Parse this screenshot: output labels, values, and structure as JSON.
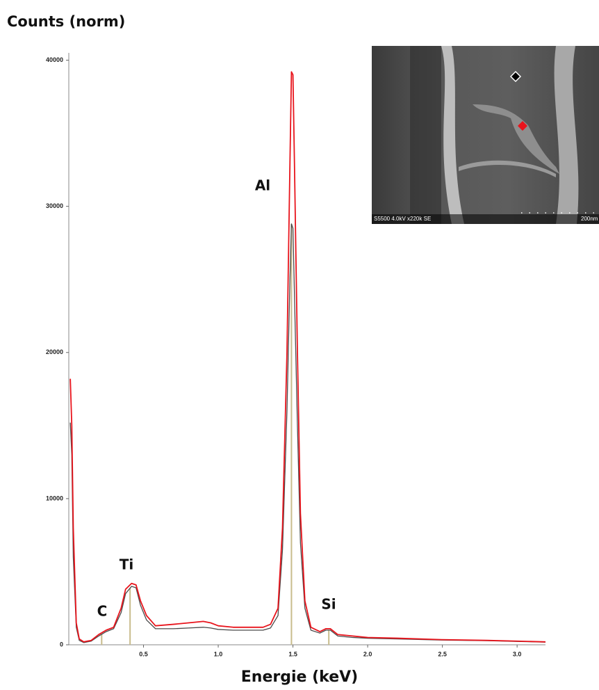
{
  "chart_data": {
    "type": "line",
    "title": "Counts (norm)",
    "x_label": "Energie (keV)",
    "x": [
      0.01,
      0.02,
      0.03,
      0.05,
      0.07,
      0.1,
      0.15,
      0.2,
      0.25,
      0.3,
      0.35,
      0.38,
      0.42,
      0.45,
      0.48,
      0.52,
      0.58,
      0.7,
      0.8,
      0.9,
      0.95,
      1.0,
      1.1,
      1.2,
      1.3,
      1.35,
      1.4,
      1.43,
      1.46,
      1.48,
      1.49,
      1.5,
      1.51,
      1.53,
      1.55,
      1.58,
      1.62,
      1.68,
      1.72,
      1.75,
      1.8,
      1.9,
      2.0,
      2.2,
      2.5,
      2.8,
      3.0,
      3.19
    ],
    "series": [
      {
        "color": "#4a4a4a",
        "values": [
          15200,
          13000,
          6000,
          1200,
          300,
          150,
          250,
          600,
          900,
          1100,
          2200,
          3500,
          4000,
          3900,
          2700,
          1700,
          1100,
          1100,
          1150,
          1200,
          1150,
          1050,
          1000,
          1000,
          1000,
          1150,
          2000,
          6500,
          16000,
          25000,
          28800,
          28500,
          24000,
          15000,
          7000,
          2500,
          1000,
          800,
          1000,
          1000,
          600,
          500,
          450,
          400,
          320,
          280,
          230,
          180
        ]
      },
      {
        "color": "#e8141c",
        "values": [
          18200,
          15000,
          8000,
          1500,
          400,
          200,
          300,
          700,
          1000,
          1200,
          2500,
          3800,
          4200,
          4100,
          3000,
          2000,
          1300,
          1400,
          1500,
          1600,
          1500,
          1300,
          1200,
          1200,
          1200,
          1400,
          2500,
          8000,
          20000,
          33000,
          39200,
          39000,
          33000,
          20000,
          9000,
          3000,
          1200,
          900,
          1100,
          1100,
          700,
          600,
          500,
          450,
          350,
          300,
          250,
          200
        ]
      }
    ],
    "xlim": [
      0,
      3.19
    ],
    "ylim": [
      0,
      40500
    ],
    "xticks": [
      0.5,
      {
        "value": 1,
        "label": "1.0"
      },
      1.5,
      {
        "value": 2,
        "label": "2.0"
      },
      2.5,
      {
        "value": 3,
        "label": "3.0"
      }
    ],
    "yticks": [
      0,
      10000,
      20000,
      30000,
      40000
    ],
    "annotations": [
      {
        "text": "C",
        "x": 0.22
      },
      {
        "text": "Ti",
        "x": 0.41
      },
      {
        "text": "Al",
        "x": 1.49
      },
      {
        "text": "Si",
        "x": 1.74
      }
    ],
    "annotation_line_color": "#c8bc8c",
    "inset_caption": "S5500 4.0kV x220k SE",
    "inset_scale": "200nm"
  }
}
